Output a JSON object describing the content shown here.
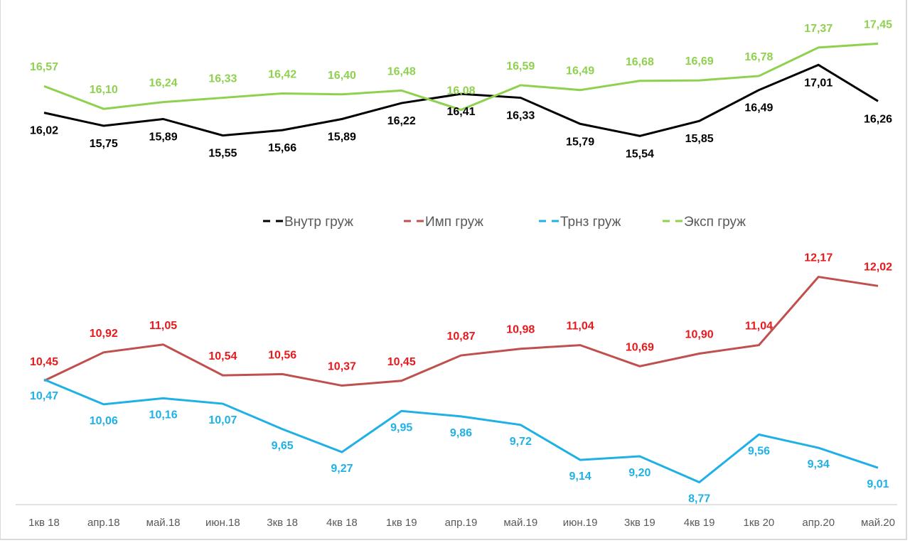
{
  "chart_data": {
    "type": "line",
    "title": "",
    "xlabel": "",
    "ylabel": "",
    "grid": false,
    "legend_position": "middle",
    "categories": [
      "1кв 18",
      "апр.18",
      "май.18",
      "июн.18",
      "3кв 18",
      "4кв 18",
      "1кв 19",
      "апр.19",
      "май.19",
      "июн.19",
      "3кв 19",
      "4кв 19",
      "1кв 20",
      "апр.20",
      "май.20"
    ],
    "series": [
      {
        "name": "Внутр груж",
        "color": "#000000",
        "label_color": "#000000",
        "values": [
          16.02,
          15.75,
          15.89,
          15.55,
          15.66,
          15.89,
          16.22,
          16.41,
          16.33,
          15.79,
          15.54,
          15.85,
          16.49,
          17.01,
          16.26
        ],
        "labels": [
          "16,02",
          "15,75",
          "15,89",
          "15,55",
          "15,66",
          "15,89",
          "16,22",
          "16,41",
          "16,33",
          "15,79",
          "15,54",
          "15,85",
          "16,49",
          "17,01",
          "16,26"
        ]
      },
      {
        "name": "Имп груж",
        "color": "#c0504d",
        "label_color": "#e8191c",
        "values": [
          10.45,
          10.92,
          11.05,
          10.54,
          10.56,
          10.37,
          10.45,
          10.87,
          10.98,
          11.04,
          10.69,
          10.9,
          11.04,
          12.17,
          12.02
        ],
        "labels": [
          "10,45",
          "10,92",
          "11,05",
          "10,54",
          "10,56",
          "10,37",
          "10,45",
          "10,87",
          "10,98",
          "11,04",
          "10,69",
          "10,90",
          "11,04",
          "12,17",
          "12,02"
        ]
      },
      {
        "name": "Трнз груж",
        "color": "#1fb1e6",
        "label_color": "#1fb1e6",
        "values": [
          10.47,
          10.06,
          10.16,
          10.07,
          9.65,
          9.27,
          9.95,
          9.86,
          9.72,
          9.14,
          9.2,
          8.77,
          9.56,
          9.34,
          9.01
        ],
        "labels": [
          "10,47",
          "10,06",
          "10,16",
          "10,07",
          "9,65",
          "9,27",
          "9,95",
          "9,86",
          "9,72",
          "9,14",
          "9,20",
          "8,77",
          "9,56",
          "9,34",
          "9,01"
        ]
      },
      {
        "name": "Эксп груж",
        "color": "#8fd14f",
        "label_color": "#8fd14f",
        "values": [
          16.57,
          16.1,
          16.24,
          16.33,
          16.42,
          16.4,
          16.48,
          16.08,
          16.59,
          16.49,
          16.68,
          16.69,
          16.78,
          17.37,
          17.45
        ],
        "labels": [
          "16,57",
          "16,10",
          "16,24",
          "16,33",
          "16,42",
          "16,40",
          "16,48",
          "16,08",
          "16,59",
          "16,49",
          "16,68",
          "16,69",
          "16,78",
          "17,37",
          "17,45"
        ]
      }
    ]
  }
}
